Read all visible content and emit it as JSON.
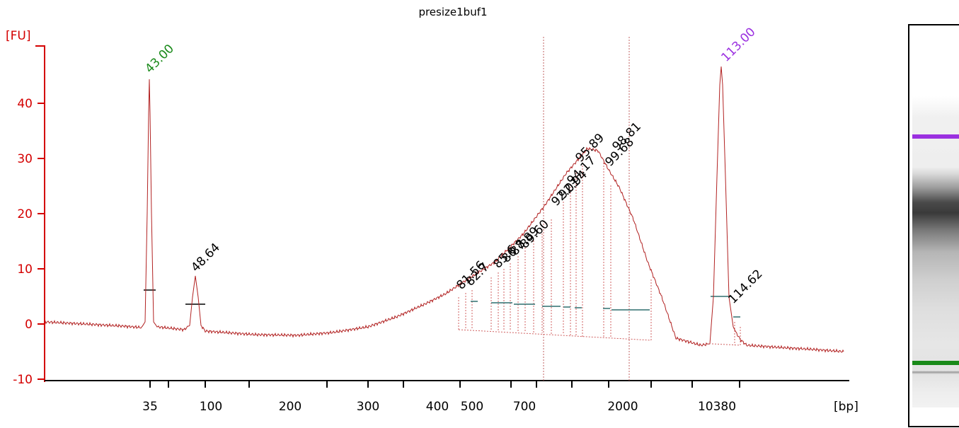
{
  "chart_data": {
    "type": "line",
    "title": "presize1buf1",
    "ylabel": "[FU]",
    "xlabel": "[bp]",
    "ylim": [
      -10,
      50
    ],
    "yticks": [
      -10,
      0,
      10,
      20,
      30,
      40
    ],
    "ytick_labels": [
      "-10",
      "0",
      "10",
      "20",
      "30",
      "40"
    ],
    "xtick_labels": [
      "35",
      "100",
      "200",
      "300",
      "400",
      "500",
      "700",
      "2000",
      "10380"
    ],
    "colors": {
      "trace": "#b22222",
      "axis": "#d40000",
      "lower_marker": "#1a8a1a",
      "upper_marker": "#9b30e0",
      "peak_label": "#000000",
      "baseline_segment": "#2f6f6f",
      "gel_lower_band": "#1a8a1a",
      "gel_upper_band": "#9b30e0"
    },
    "peaks": [
      {
        "label": "43.00",
        "fu": 44,
        "role": "lower_marker"
      },
      {
        "label": "48.64",
        "fu": 8.5,
        "role": "sample"
      },
      {
        "label": "81.56",
        "fu": 4.8,
        "role": "sample"
      },
      {
        "label": "82.7",
        "fu": 5.2,
        "role": "sample"
      },
      {
        "label": "85.6",
        "fu": 6.8,
        "role": "sample"
      },
      {
        "label": "86.8",
        "fu": 8.0,
        "role": "sample"
      },
      {
        "label": "87.89",
        "fu": 9.5,
        "role": "sample"
      },
      {
        "label": "89.60",
        "fu": 11.0,
        "role": "sample"
      },
      {
        "label": "92.01",
        "fu": 17.0,
        "role": "sample"
      },
      {
        "label": "92.94",
        "fu": 20.0,
        "role": "sample"
      },
      {
        "label": "94.17",
        "fu": 25.0,
        "role": "sample"
      },
      {
        "label": "95.89",
        "fu": 31.0,
        "role": "sample"
      },
      {
        "label": "98.81",
        "fu": 30.0,
        "role": "sample"
      },
      {
        "label": "99.68",
        "fu": 29.0,
        "role": "sample"
      },
      {
        "label": "113.00",
        "fu": 46,
        "role": "upper_marker"
      },
      {
        "label": "114.62",
        "fu": 1.5,
        "role": "sample"
      }
    ],
    "grid": false,
    "legend": "none"
  }
}
